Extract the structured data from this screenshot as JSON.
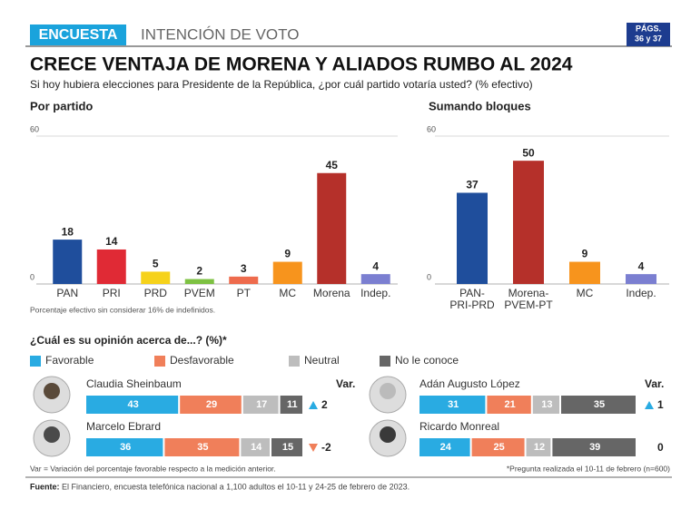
{
  "header": {
    "tag": "ENCUESTA",
    "section": "INTENCIÓN DE VOTO",
    "pages_label": "PÁGS.",
    "pages": "36 y 37",
    "title": "CRECE VENTAJA DE MORENA Y ALIADOS RUMBO AL 2024",
    "subtitle": "Si hoy hubiera elecciones para Presidente de la República, ¿por cuál partido votaría usted? (% efectivo)"
  },
  "chart_data": [
    {
      "type": "bar",
      "title": "Por partido",
      "categories": [
        "PAN",
        "PRI",
        "PRD",
        "PVEM",
        "PT",
        "MC",
        "Morena",
        "Indep."
      ],
      "values": [
        18,
        14,
        5,
        2,
        3,
        9,
        45,
        4
      ],
      "colors": [
        "#1f4e9c",
        "#e02a35",
        "#f6d21a",
        "#7dc142",
        "#ee6b4d",
        "#f7941d",
        "#b5302a",
        "#7b7fd1"
      ],
      "ylim": [
        0,
        60
      ],
      "yticks": [
        0,
        60
      ],
      "grid": true,
      "note": "Porcentaje efectivo sin considerar 16% de indefinidos."
    },
    {
      "type": "bar",
      "title": "Sumando bloques",
      "categories": [
        "PAN-\nPRI-PRD",
        "Morena-\nPVEM-PT",
        "MC",
        "Indep."
      ],
      "values": [
        37,
        50,
        9,
        4
      ],
      "colors": [
        "#1f4e9c",
        "#b5302a",
        "#f7941d",
        "#7b7fd1"
      ],
      "ylim": [
        0,
        60
      ],
      "yticks": [
        0,
        60
      ],
      "grid": true
    },
    {
      "type": "stacked-hbar",
      "title": "¿Cuál es su opinión acerca de...? (%)*",
      "categories": [
        "Claudia Sheinbaum",
        "Marcelo Ebrard",
        "Adán Augusto López",
        "Ricardo Monreal"
      ],
      "xlim": [
        0,
        100
      ],
      "series": [
        {
          "name": "Favorable",
          "color": "#29abe2",
          "values": [
            43,
            36,
            31,
            24
          ]
        },
        {
          "name": "Desfavorable",
          "color": "#f07f5a",
          "values": [
            29,
            35,
            21,
            25
          ]
        },
        {
          "name": "Neutral",
          "color": "#bdbdbd",
          "values": [
            17,
            14,
            13,
            12
          ]
        },
        {
          "name": "No le conoce",
          "color": "#666666",
          "values": [
            11,
            15,
            35,
            39
          ]
        }
      ],
      "var_title": "Var.",
      "var": [
        2,
        -2,
        1,
        0
      ],
      "note": "Var = Variación del porcentaje favorable respecto a la medición anterior.",
      "note2": "*Pregunta realizada el 10-11 de febrero (n=600)"
    }
  ],
  "footer": {
    "source_label": "Fuente:",
    "source": "El Financiero, encuesta telefónica nacional a 1,100 adultos el 10-11 y 24-25 de febrero de 2023."
  }
}
